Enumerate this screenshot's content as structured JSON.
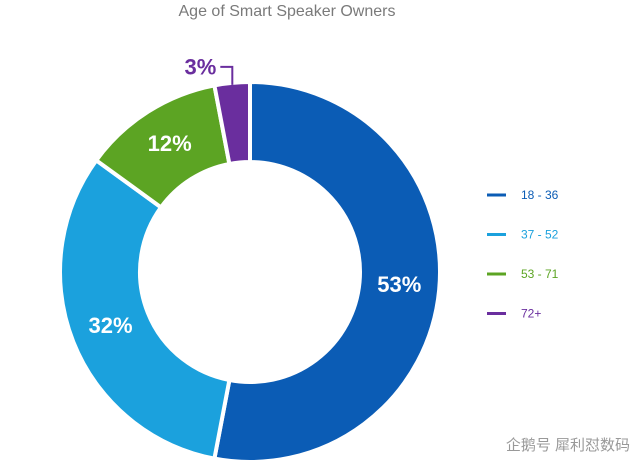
{
  "chart_data": {
    "type": "donut",
    "title": "Age of Smart Speaker Owners",
    "categories": [
      "18 - 36",
      "37 - 52",
      "53 - 71",
      "72+"
    ],
    "values": [
      53,
      32,
      12,
      3
    ],
    "value_labels": [
      "53%",
      "32%",
      "12%",
      "3%"
    ],
    "colors": [
      "#0b5cb5",
      "#1ba1dd",
      "#5ca423",
      "#6a2e9e"
    ],
    "legend": "right"
  },
  "watermark": "企鹅号 犀利怼数码"
}
